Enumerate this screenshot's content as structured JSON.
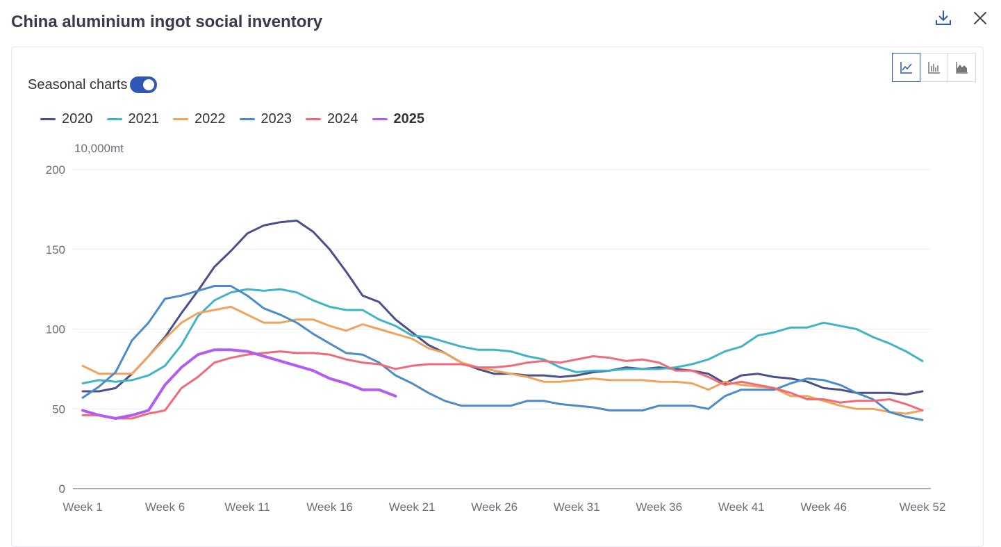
{
  "header": {
    "title": "China aluminium ingot social inventory",
    "download_icon": "download-icon",
    "close_icon": "close-icon"
  },
  "controls": {
    "seasonal_label": "Seasonal charts",
    "seasonal_on": true,
    "chart_types": [
      "line-chart-icon",
      "bar-chart-icon",
      "area-chart-icon"
    ],
    "active_chart_type": "line-chart-icon"
  },
  "chart_data": {
    "type": "line",
    "title": "China aluminium ingot social inventory",
    "ylabel": "10,000mt",
    "ylim": [
      0,
      200
    ],
    "yticks": [
      0,
      50,
      100,
      150,
      200
    ],
    "x_tick_labels": [
      "Week 1",
      "Week 6",
      "Week 11",
      "Week 16",
      "Week 21",
      "Week 26",
      "Week 31",
      "Week 36",
      "Week 41",
      "Week 46",
      "Week 52"
    ],
    "x_tick_weeks": [
      1,
      6,
      11,
      16,
      21,
      26,
      31,
      36,
      41,
      46,
      52
    ],
    "x_range": [
      1,
      52
    ],
    "grid": true,
    "legend_position": "top-left",
    "series": [
      {
        "name": "2020",
        "color": "#4a4f8c",
        "values": [
          61,
          61,
          63,
          72,
          83,
          95,
          110,
          124,
          139,
          149,
          160,
          165,
          167,
          168,
          161,
          150,
          136,
          121,
          117,
          106,
          98,
          90,
          85,
          79,
          75,
          72,
          72,
          71,
          71,
          70,
          71,
          73,
          74,
          76,
          75,
          76,
          75,
          74,
          72,
          66,
          71,
          72,
          70,
          69,
          67,
          63,
          62,
          60,
          60,
          60,
          59,
          61
        ]
      },
      {
        "name": "2021",
        "color": "#3fb4c7",
        "values": [
          66,
          68,
          67,
          68,
          71,
          77,
          90,
          108,
          118,
          123,
          125,
          124,
          125,
          123,
          118,
          114,
          112,
          112,
          106,
          102,
          96,
          95,
          92,
          89,
          87,
          87,
          86,
          83,
          81,
          76,
          73,
          74,
          74,
          75,
          75,
          75,
          76,
          78,
          81,
          86,
          89,
          96,
          98,
          101,
          101,
          104,
          102,
          100,
          95,
          91,
          86,
          80
        ]
      },
      {
        "name": "2022",
        "color": "#f0a35a",
        "values": [
          77,
          72,
          72,
          72,
          83,
          94,
          104,
          110,
          112,
          114,
          109,
          104,
          104,
          106,
          106,
          102,
          99,
          103,
          100,
          97,
          94,
          88,
          85,
          79,
          76,
          74,
          72,
          70,
          67,
          67,
          68,
          69,
          68,
          68,
          68,
          67,
          67,
          66,
          62,
          67,
          65,
          64,
          63,
          58,
          58,
          55,
          52,
          50,
          50,
          48,
          47,
          49
        ]
      },
      {
        "name": "2023",
        "color": "#4c8bc9",
        "values": [
          57,
          64,
          73,
          93,
          104,
          119,
          121,
          124,
          127,
          127,
          121,
          113,
          109,
          104,
          97,
          91,
          85,
          84,
          79,
          71,
          66,
          60,
          55,
          52,
          52,
          52,
          52,
          55,
          55,
          53,
          52,
          51,
          49,
          49,
          49,
          52,
          52,
          52,
          50,
          58,
          62,
          62,
          62,
          66,
          69,
          68,
          65,
          60,
          56,
          48,
          45,
          43
        ]
      },
      {
        "name": "2024",
        "color": "#f06a78",
        "values": [
          46,
          46,
          44,
          44,
          47,
          49,
          63,
          70,
          79,
          82,
          84,
          85,
          86,
          85,
          85,
          84,
          81,
          79,
          78,
          75,
          77,
          78,
          78,
          78,
          76,
          76,
          77,
          79,
          80,
          79,
          81,
          83,
          82,
          80,
          81,
          79,
          74,
          74,
          70,
          65,
          67,
          65,
          63,
          60,
          56,
          56,
          54,
          55,
          55,
          56,
          53,
          49
        ]
      },
      {
        "name": "2025",
        "color": "#b35cf2",
        "values": [
          49,
          46,
          44,
          46,
          49,
          65,
          76,
          84,
          87,
          87,
          86,
          83,
          80,
          77,
          74,
          69,
          66,
          62,
          62,
          58
        ]
      }
    ]
  }
}
